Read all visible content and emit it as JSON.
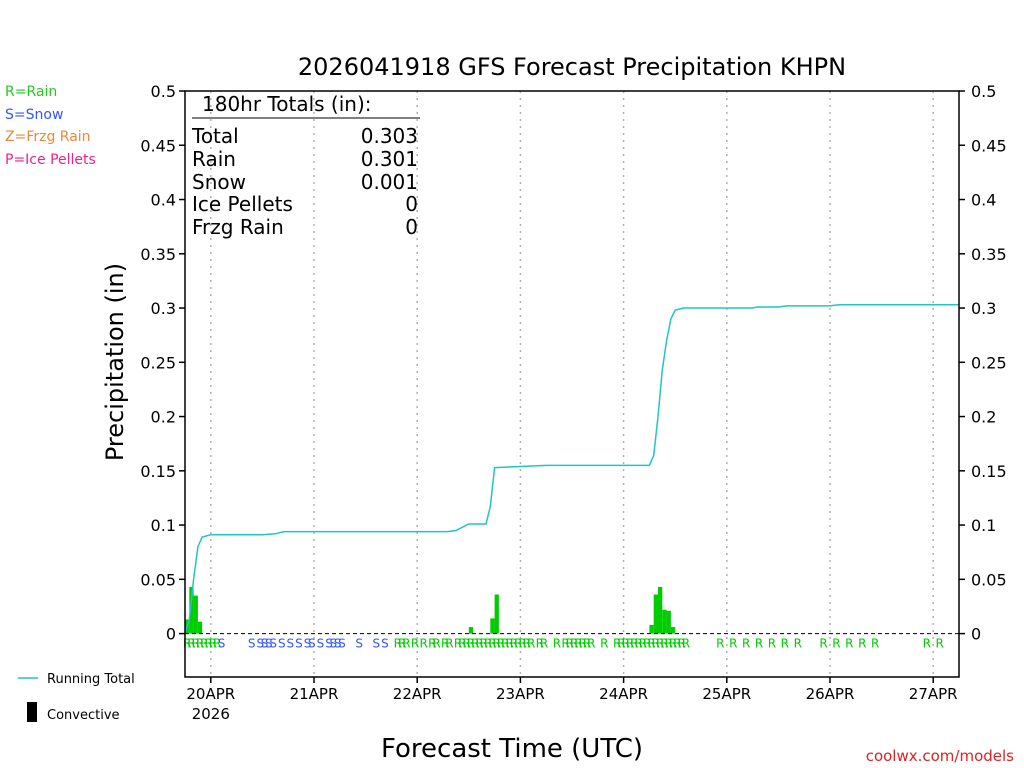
{
  "chart_data": {
    "type": "bar",
    "title": "2026041918 GFS Forecast Precipitation KHPN",
    "xlabel": "Forecast Time (UTC)",
    "ylabel": "Precipitation (in)",
    "ylim": [
      -0.04,
      0.5
    ],
    "yticks": [
      0,
      0.05,
      0.1,
      0.15,
      0.2,
      0.25,
      0.3,
      0.35,
      0.4,
      0.45,
      0.5
    ],
    "ytick_labels": [
      "0",
      "0.05",
      "0.1",
      "0.15",
      "0.2",
      "0.25",
      "0.3",
      "0.35",
      "0.4",
      "0.45",
      "0.5"
    ],
    "xlim_hours": [
      -6,
      174
    ],
    "day_ticks": [
      {
        "hour": 0,
        "label": "20APR",
        "sublabel": "2026"
      },
      {
        "hour": 24,
        "label": "21APR"
      },
      {
        "hour": 48,
        "label": "22APR"
      },
      {
        "hour": 72,
        "label": "23APR"
      },
      {
        "hour": 96,
        "label": "24APR"
      },
      {
        "hour": 120,
        "label": "25APR"
      },
      {
        "hour": 144,
        "label": "26APR"
      },
      {
        "hour": 168,
        "label": "27APR"
      }
    ],
    "bars": [
      {
        "hour": -5.5,
        "value": 0.013
      },
      {
        "hour": -4.5,
        "value": 0.043
      },
      {
        "hour": -3.5,
        "value": 0.035
      },
      {
        "hour": -2.5,
        "value": 0.011
      },
      {
        "hour": 60.5,
        "value": 0.006
      },
      {
        "hour": 65.5,
        "value": 0.014
      },
      {
        "hour": 66.5,
        "value": 0.036
      },
      {
        "hour": 102.5,
        "value": 0.008
      },
      {
        "hour": 103.5,
        "value": 0.036
      },
      {
        "hour": 104.5,
        "value": 0.043
      },
      {
        "hour": 105.5,
        "value": 0.022
      },
      {
        "hour": 106.5,
        "value": 0.021
      },
      {
        "hour": 107.5,
        "value": 0.006
      }
    ],
    "series": [
      {
        "name": "Running Total",
        "color": "#22c4c4",
        "points": [
          [
            -6,
            0
          ],
          [
            -5,
            0.013
          ],
          [
            -4,
            0.05
          ],
          [
            -3,
            0.08
          ],
          [
            -2,
            0.089
          ],
          [
            0,
            0.091
          ],
          [
            12,
            0.091
          ],
          [
            15,
            0.092
          ],
          [
            17,
            0.094
          ],
          [
            30,
            0.094
          ],
          [
            55,
            0.094
          ],
          [
            57,
            0.095
          ],
          [
            60,
            0.101
          ],
          [
            64,
            0.101
          ],
          [
            65,
            0.117
          ],
          [
            66,
            0.153
          ],
          [
            72,
            0.154
          ],
          [
            78,
            0.155
          ],
          [
            96,
            0.155
          ],
          [
            102,
            0.155
          ],
          [
            103,
            0.164
          ],
          [
            104,
            0.2
          ],
          [
            105,
            0.243
          ],
          [
            106,
            0.27
          ],
          [
            107,
            0.29
          ],
          [
            108,
            0.298
          ],
          [
            110,
            0.3
          ],
          [
            120,
            0.3
          ],
          [
            126,
            0.3
          ],
          [
            127,
            0.301
          ],
          [
            132,
            0.301
          ],
          [
            134,
            0.302
          ],
          [
            144,
            0.302
          ],
          [
            146,
            0.303
          ],
          [
            174,
            0.303
          ]
        ]
      }
    ],
    "ptype_strip": {
      "green": "#00cc00",
      "blue": "#3355ff",
      "items": [
        {
          "hour": -5.5,
          "label": "R"
        },
        {
          "hour": -4.5,
          "label": "R"
        },
        {
          "hour": -3.5,
          "label": "R"
        },
        {
          "hour": -2.5,
          "label": "R"
        },
        {
          "hour": -1.5,
          "label": "R"
        },
        {
          "hour": -0.5,
          "label": "R"
        },
        {
          "hour": 0.5,
          "label": "R"
        },
        {
          "hour": 1.5,
          "label": "R"
        },
        {
          "hour": 2.5,
          "label": "S"
        },
        {
          "hour": 9.5,
          "label": "S"
        },
        {
          "hour": 11.5,
          "label": "S"
        },
        {
          "hour": 12.5,
          "label": "S"
        },
        {
          "hour": 13.5,
          "label": "S"
        },
        {
          "hour": 14.5,
          "label": "S"
        },
        {
          "hour": 16.5,
          "label": "S"
        },
        {
          "hour": 18.5,
          "label": "S"
        },
        {
          "hour": 20.5,
          "label": "S"
        },
        {
          "hour": 22.5,
          "label": "S"
        },
        {
          "hour": 23.5,
          "label": "S"
        },
        {
          "hour": 25.5,
          "label": "S"
        },
        {
          "hour": 27.5,
          "label": "S"
        },
        {
          "hour": 28.5,
          "label": "S"
        },
        {
          "hour": 29.5,
          "label": "S"
        },
        {
          "hour": 30.5,
          "label": "S"
        },
        {
          "hour": 34.5,
          "label": "S"
        },
        {
          "hour": 38.5,
          "label": "S"
        },
        {
          "hour": 40.5,
          "label": "S"
        },
        {
          "hour": 43.5,
          "label": "R"
        },
        {
          "hour": 44.5,
          "label": "R"
        },
        {
          "hour": 45.5,
          "label": "R"
        },
        {
          "hour": 47.5,
          "label": "R"
        },
        {
          "hour": 49.5,
          "label": "R"
        },
        {
          "hour": 51.5,
          "label": "R"
        },
        {
          "hour": 52.5,
          "label": "R"
        },
        {
          "hour": 54.5,
          "label": "R"
        },
        {
          "hour": 55.5,
          "label": "R"
        },
        {
          "hour": 57.5,
          "label": "R"
        },
        {
          "hour": 58.5,
          "label": "R"
        },
        {
          "hour": 59.5,
          "label": "R"
        },
        {
          "hour": 60.5,
          "label": "R"
        },
        {
          "hour": 61.5,
          "label": "R"
        },
        {
          "hour": 62.5,
          "label": "R"
        },
        {
          "hour": 63.5,
          "label": "R"
        },
        {
          "hour": 64.5,
          "label": "R"
        },
        {
          "hour": 65.5,
          "label": "R"
        },
        {
          "hour": 66.5,
          "label": "R"
        },
        {
          "hour": 67.5,
          "label": "R"
        },
        {
          "hour": 68.5,
          "label": "R"
        },
        {
          "hour": 69.5,
          "label": "R"
        },
        {
          "hour": 70.5,
          "label": "R"
        },
        {
          "hour": 71.5,
          "label": "R"
        },
        {
          "hour": 72.5,
          "label": "R"
        },
        {
          "hour": 73.5,
          "label": "R"
        },
        {
          "hour": 74.5,
          "label": "R"
        },
        {
          "hour": 76.5,
          "label": "R"
        },
        {
          "hour": 77.5,
          "label": "R"
        },
        {
          "hour": 80.5,
          "label": "R"
        },
        {
          "hour": 82.5,
          "label": "R"
        },
        {
          "hour": 83.5,
          "label": "R"
        },
        {
          "hour": 84.5,
          "label": "R"
        },
        {
          "hour": 85.5,
          "label": "R"
        },
        {
          "hour": 86.5,
          "label": "R"
        },
        {
          "hour": 87.5,
          "label": "R"
        },
        {
          "hour": 88.5,
          "label": "R"
        },
        {
          "hour": 91.5,
          "label": "R"
        },
        {
          "hour": 94.5,
          "label": "R"
        },
        {
          "hour": 95.5,
          "label": "R"
        },
        {
          "hour": 96.5,
          "label": "R"
        },
        {
          "hour": 97.5,
          "label": "R"
        },
        {
          "hour": 98.5,
          "label": "R"
        },
        {
          "hour": 99.5,
          "label": "R"
        },
        {
          "hour": 100.5,
          "label": "R"
        },
        {
          "hour": 101.5,
          "label": "R"
        },
        {
          "hour": 102.5,
          "label": "R"
        },
        {
          "hour": 103.5,
          "label": "R"
        },
        {
          "hour": 104.5,
          "label": "R"
        },
        {
          "hour": 105.5,
          "label": "R"
        },
        {
          "hour": 106.5,
          "label": "R"
        },
        {
          "hour": 107.5,
          "label": "R"
        },
        {
          "hour": 108.5,
          "label": "R"
        },
        {
          "hour": 109.5,
          "label": "R"
        },
        {
          "hour": 110.5,
          "label": "R"
        },
        {
          "hour": 118.5,
          "label": "R"
        },
        {
          "hour": 121.5,
          "label": "R"
        },
        {
          "hour": 124.5,
          "label": "R"
        },
        {
          "hour": 127.5,
          "label": "R"
        },
        {
          "hour": 130.5,
          "label": "R"
        },
        {
          "hour": 133.5,
          "label": "R"
        },
        {
          "hour": 136.5,
          "label": "R"
        },
        {
          "hour": 142.5,
          "label": "R"
        },
        {
          "hour": 145.5,
          "label": "R"
        },
        {
          "hour": 148.5,
          "label": "R"
        },
        {
          "hour": 151.5,
          "label": "R"
        },
        {
          "hour": 154.5,
          "label": "R"
        },
        {
          "hour": 166.5,
          "label": "R"
        },
        {
          "hour": 169.5,
          "label": "R"
        }
      ]
    },
    "totals_box": {
      "heading": "180hr Totals (in):",
      "rows": [
        {
          "label": "Total",
          "value": "0.303"
        },
        {
          "label": "Rain",
          "value": "0.301"
        },
        {
          "label": "Snow",
          "value": "0.001"
        },
        {
          "label": "Ice Pellets",
          "value": "0"
        },
        {
          "label": "Frzg Rain",
          "value": "0"
        }
      ]
    },
    "legend_top": [
      {
        "label": "R=Rain",
        "color": "#22cc22"
      },
      {
        "label": "S=Snow",
        "color": "#3355ff"
      },
      {
        "label": "Z=Frzg Rain",
        "color": "#ee8833"
      },
      {
        "label": "P=Ice Pellets",
        "color": "#ee2288"
      }
    ],
    "legend_bottom": [
      {
        "label": "Running Total",
        "color": "#22c4c4"
      },
      {
        "label": "Convective",
        "color": "#000000"
      }
    ],
    "bar_color": "#00cc00",
    "credit": "coolwx.com/models",
    "credit_color": "#dd2222"
  }
}
